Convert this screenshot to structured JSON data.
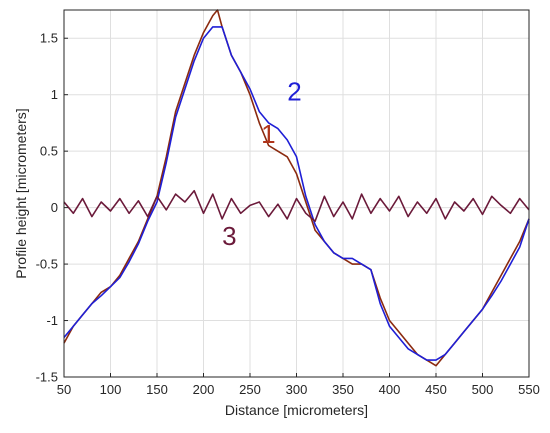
{
  "chart_data": {
    "type": "line",
    "title": "",
    "xlabel": "Distance [micrometers]",
    "ylabel": "Profile height [micrometers]",
    "xlim": [
      50,
      550
    ],
    "ylim": [
      -1.5,
      1.75
    ],
    "xticks": [
      50,
      100,
      150,
      200,
      250,
      300,
      350,
      400,
      450,
      500,
      550
    ],
    "yticks": [
      -1.5,
      -1,
      -0.5,
      0,
      0.5,
      1,
      1.5
    ],
    "xtick_labels": [
      "50",
      "100",
      "150",
      "200",
      "250",
      "300",
      "350",
      "400",
      "450",
      "500",
      "550"
    ],
    "ytick_labels": [
      "-1.5",
      "-1",
      "-0.5",
      "0",
      "0.5",
      "1",
      "1.5"
    ],
    "grid": true,
    "legend": "none",
    "series": [
      {
        "color": "#8b2a0f",
        "x": [
          50,
          60,
          70,
          80,
          90,
          100,
          110,
          120,
          130,
          140,
          150,
          160,
          170,
          180,
          190,
          200,
          210,
          215,
          220,
          230,
          240,
          250,
          260,
          270,
          280,
          290,
          300,
          310,
          320,
          330,
          340,
          350,
          360,
          370,
          380,
          390,
          400,
          410,
          420,
          430,
          440,
          450,
          460,
          470,
          480,
          490,
          500,
          510,
          520,
          530,
          540,
          550
        ],
        "y": [
          -1.2,
          -1.05,
          -0.95,
          -0.85,
          -0.75,
          -0.7,
          -0.6,
          -0.45,
          -0.3,
          -0.1,
          0.1,
          0.45,
          0.85,
          1.1,
          1.35,
          1.55,
          1.7,
          1.75,
          1.6,
          1.35,
          1.2,
          1.0,
          0.75,
          0.55,
          0.5,
          0.45,
          0.3,
          0.05,
          -0.2,
          -0.3,
          -0.4,
          -0.45,
          -0.5,
          -0.5,
          -0.55,
          -0.8,
          -1.0,
          -1.1,
          -1.2,
          -1.3,
          -1.35,
          -1.4,
          -1.3,
          -1.2,
          -1.1,
          -1.0,
          -0.9,
          -0.75,
          -0.6,
          -0.45,
          -0.3,
          -0.1
        ]
      },
      {
        "color": "#1f1fd6",
        "x": [
          50,
          60,
          70,
          80,
          90,
          100,
          110,
          120,
          130,
          140,
          150,
          160,
          170,
          180,
          190,
          200,
          210,
          220,
          230,
          240,
          250,
          260,
          270,
          280,
          290,
          300,
          310,
          320,
          330,
          340,
          350,
          360,
          370,
          380,
          390,
          400,
          410,
          420,
          430,
          440,
          450,
          460,
          470,
          480,
          490,
          500,
          510,
          520,
          530,
          540,
          550
        ],
        "y": [
          -1.15,
          -1.05,
          -0.95,
          -0.85,
          -0.78,
          -0.7,
          -0.62,
          -0.48,
          -0.32,
          -0.12,
          0.05,
          0.4,
          0.8,
          1.05,
          1.3,
          1.5,
          1.6,
          1.6,
          1.35,
          1.2,
          1.05,
          0.85,
          0.75,
          0.7,
          0.6,
          0.45,
          0.1,
          -0.15,
          -0.3,
          -0.4,
          -0.45,
          -0.45,
          -0.5,
          -0.55,
          -0.85,
          -1.05,
          -1.15,
          -1.25,
          -1.3,
          -1.35,
          -1.35,
          -1.3,
          -1.2,
          -1.1,
          -1.0,
          -0.9,
          -0.78,
          -0.65,
          -0.5,
          -0.35,
          -0.1
        ]
      },
      {
        "color": "#6b1a3a",
        "x": [
          50,
          60,
          70,
          80,
          90,
          100,
          110,
          120,
          130,
          140,
          150,
          160,
          170,
          180,
          190,
          200,
          210,
          220,
          230,
          240,
          250,
          260,
          270,
          280,
          290,
          300,
          310,
          320,
          330,
          340,
          350,
          360,
          370,
          380,
          390,
          400,
          410,
          420,
          430,
          440,
          450,
          460,
          470,
          480,
          490,
          500,
          510,
          520,
          530,
          540,
          550
        ],
        "y": [
          0.05,
          -0.05,
          0.08,
          -0.08,
          0.05,
          -0.03,
          0.08,
          -0.05,
          0.06,
          -0.08,
          0.1,
          -0.02,
          0.12,
          0.05,
          0.15,
          -0.05,
          0.12,
          -0.1,
          0.08,
          -0.05,
          0.02,
          0.05,
          -0.08,
          0.03,
          -0.1,
          0.08,
          -0.05,
          -0.12,
          0.1,
          -0.08,
          0.05,
          -0.1,
          0.12,
          -0.05,
          0.08,
          -0.03,
          0.1,
          -0.08,
          0.05,
          -0.05,
          0.08,
          -0.1,
          0.05,
          -0.03,
          0.08,
          -0.06,
          0.1,
          0.02,
          -0.05,
          0.08,
          -0.02
        ]
      }
    ],
    "annotations": [
      {
        "text": "2",
        "x": 290,
        "y": 0.95,
        "color": "#1f1fd6"
      },
      {
        "text": "1",
        "x": 262,
        "y": 0.57,
        "color": "#b0341a"
      },
      {
        "text": "3",
        "x": 220,
        "y": -0.33,
        "color": "#6b1a3a"
      }
    ]
  }
}
